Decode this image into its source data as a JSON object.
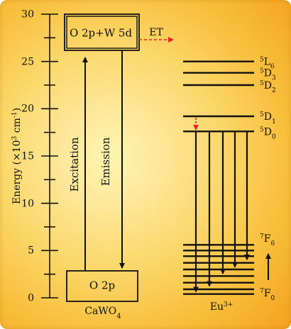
{
  "figure": {
    "y_axis": {
      "label_main": "Energy (×10",
      "label_sup1": "3",
      "label_mid": " cm",
      "label_sup2": "-1",
      "label_end": ")",
      "range": [
        0,
        30
      ],
      "ticks": [
        "0",
        "5",
        "10",
        "15",
        "20",
        "25",
        "30"
      ]
    },
    "host": {
      "upper_level_label": "O 2p+W 5d",
      "lower_level_label": "O 2p",
      "excitation_label": "Excitation",
      "emission_label": "Emission",
      "name_main": "CaWO",
      "name_sub": "4"
    },
    "transfer": {
      "label": "ET"
    },
    "ion": {
      "name_main": "Eu",
      "name_sup": "3+",
      "excited_levels": [
        {
          "energy": 25.0,
          "pre": "5",
          "main": "L",
          "sub": "6"
        },
        {
          "energy": 23.8,
          "pre": "5",
          "main": "D",
          "sub": "3"
        },
        {
          "energy": 22.5,
          "pre": "5",
          "main": "D",
          "sub": "2"
        },
        {
          "energy": 19.2,
          "pre": "5",
          "main": "D",
          "sub": "1"
        },
        {
          "energy": 17.6,
          "pre": "5",
          "main": "D",
          "sub": "0"
        }
      ],
      "ground_top": {
        "pre": "7",
        "main": "F",
        "sub": "6"
      },
      "ground_bottom": {
        "pre": "7",
        "main": "F",
        "sub": "0"
      },
      "ground_levels": [
        0.4,
        0.9,
        1.6,
        2.3,
        3.0,
        3.7,
        4.4,
        5.0,
        5.6
      ]
    },
    "colors": {
      "line": "#111111",
      "transfer": "#E8231E"
    }
  }
}
